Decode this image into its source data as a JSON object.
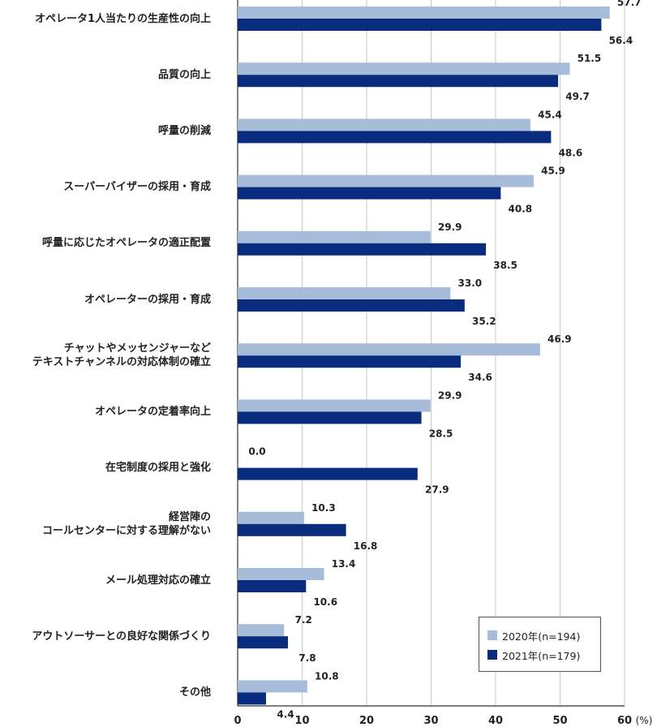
{
  "chart_data": {
    "type": "bar",
    "orientation": "horizontal",
    "categories": [
      [
        "オペレータ1人当たりの生産性の向上"
      ],
      [
        "品質の向上"
      ],
      [
        "呼量の削減"
      ],
      [
        "スーパーバイザーの採用・育成"
      ],
      [
        "呼量に応じたオペレータの適正配置"
      ],
      [
        "オペレーターの採用・育成"
      ],
      [
        "チャットやメッセンジャーなど",
        "テキストチャンネルの対応体制の確立"
      ],
      [
        "オペレータの定着率向上"
      ],
      [
        "在宅制度の採用と強化"
      ],
      [
        "経営陣の",
        "コールセンターに対する理解がない"
      ],
      [
        "メール処理対応の確立"
      ],
      [
        "アウトソーサーとの良好な関係づくり"
      ],
      [
        "その他"
      ]
    ],
    "series": [
      {
        "name": "2020年(n=194)",
        "color": "#a6bcd9",
        "values": [
          57.7,
          51.5,
          45.4,
          45.9,
          29.9,
          33.0,
          46.9,
          29.9,
          0.0,
          10.3,
          13.4,
          7.2,
          10.8
        ]
      },
      {
        "name": "2021年(n=179)",
        "color": "#0a2c7e",
        "values": [
          56.4,
          49.7,
          48.6,
          40.8,
          38.5,
          35.2,
          34.6,
          28.5,
          27.9,
          16.8,
          10.6,
          7.8,
          4.4
        ]
      }
    ],
    "xlim": [
      0,
      60
    ],
    "xticks": [
      0,
      10,
      20,
      30,
      40,
      50,
      60
    ],
    "x_unit": "(%)",
    "grid": true,
    "legend_position": "bottom-right"
  }
}
